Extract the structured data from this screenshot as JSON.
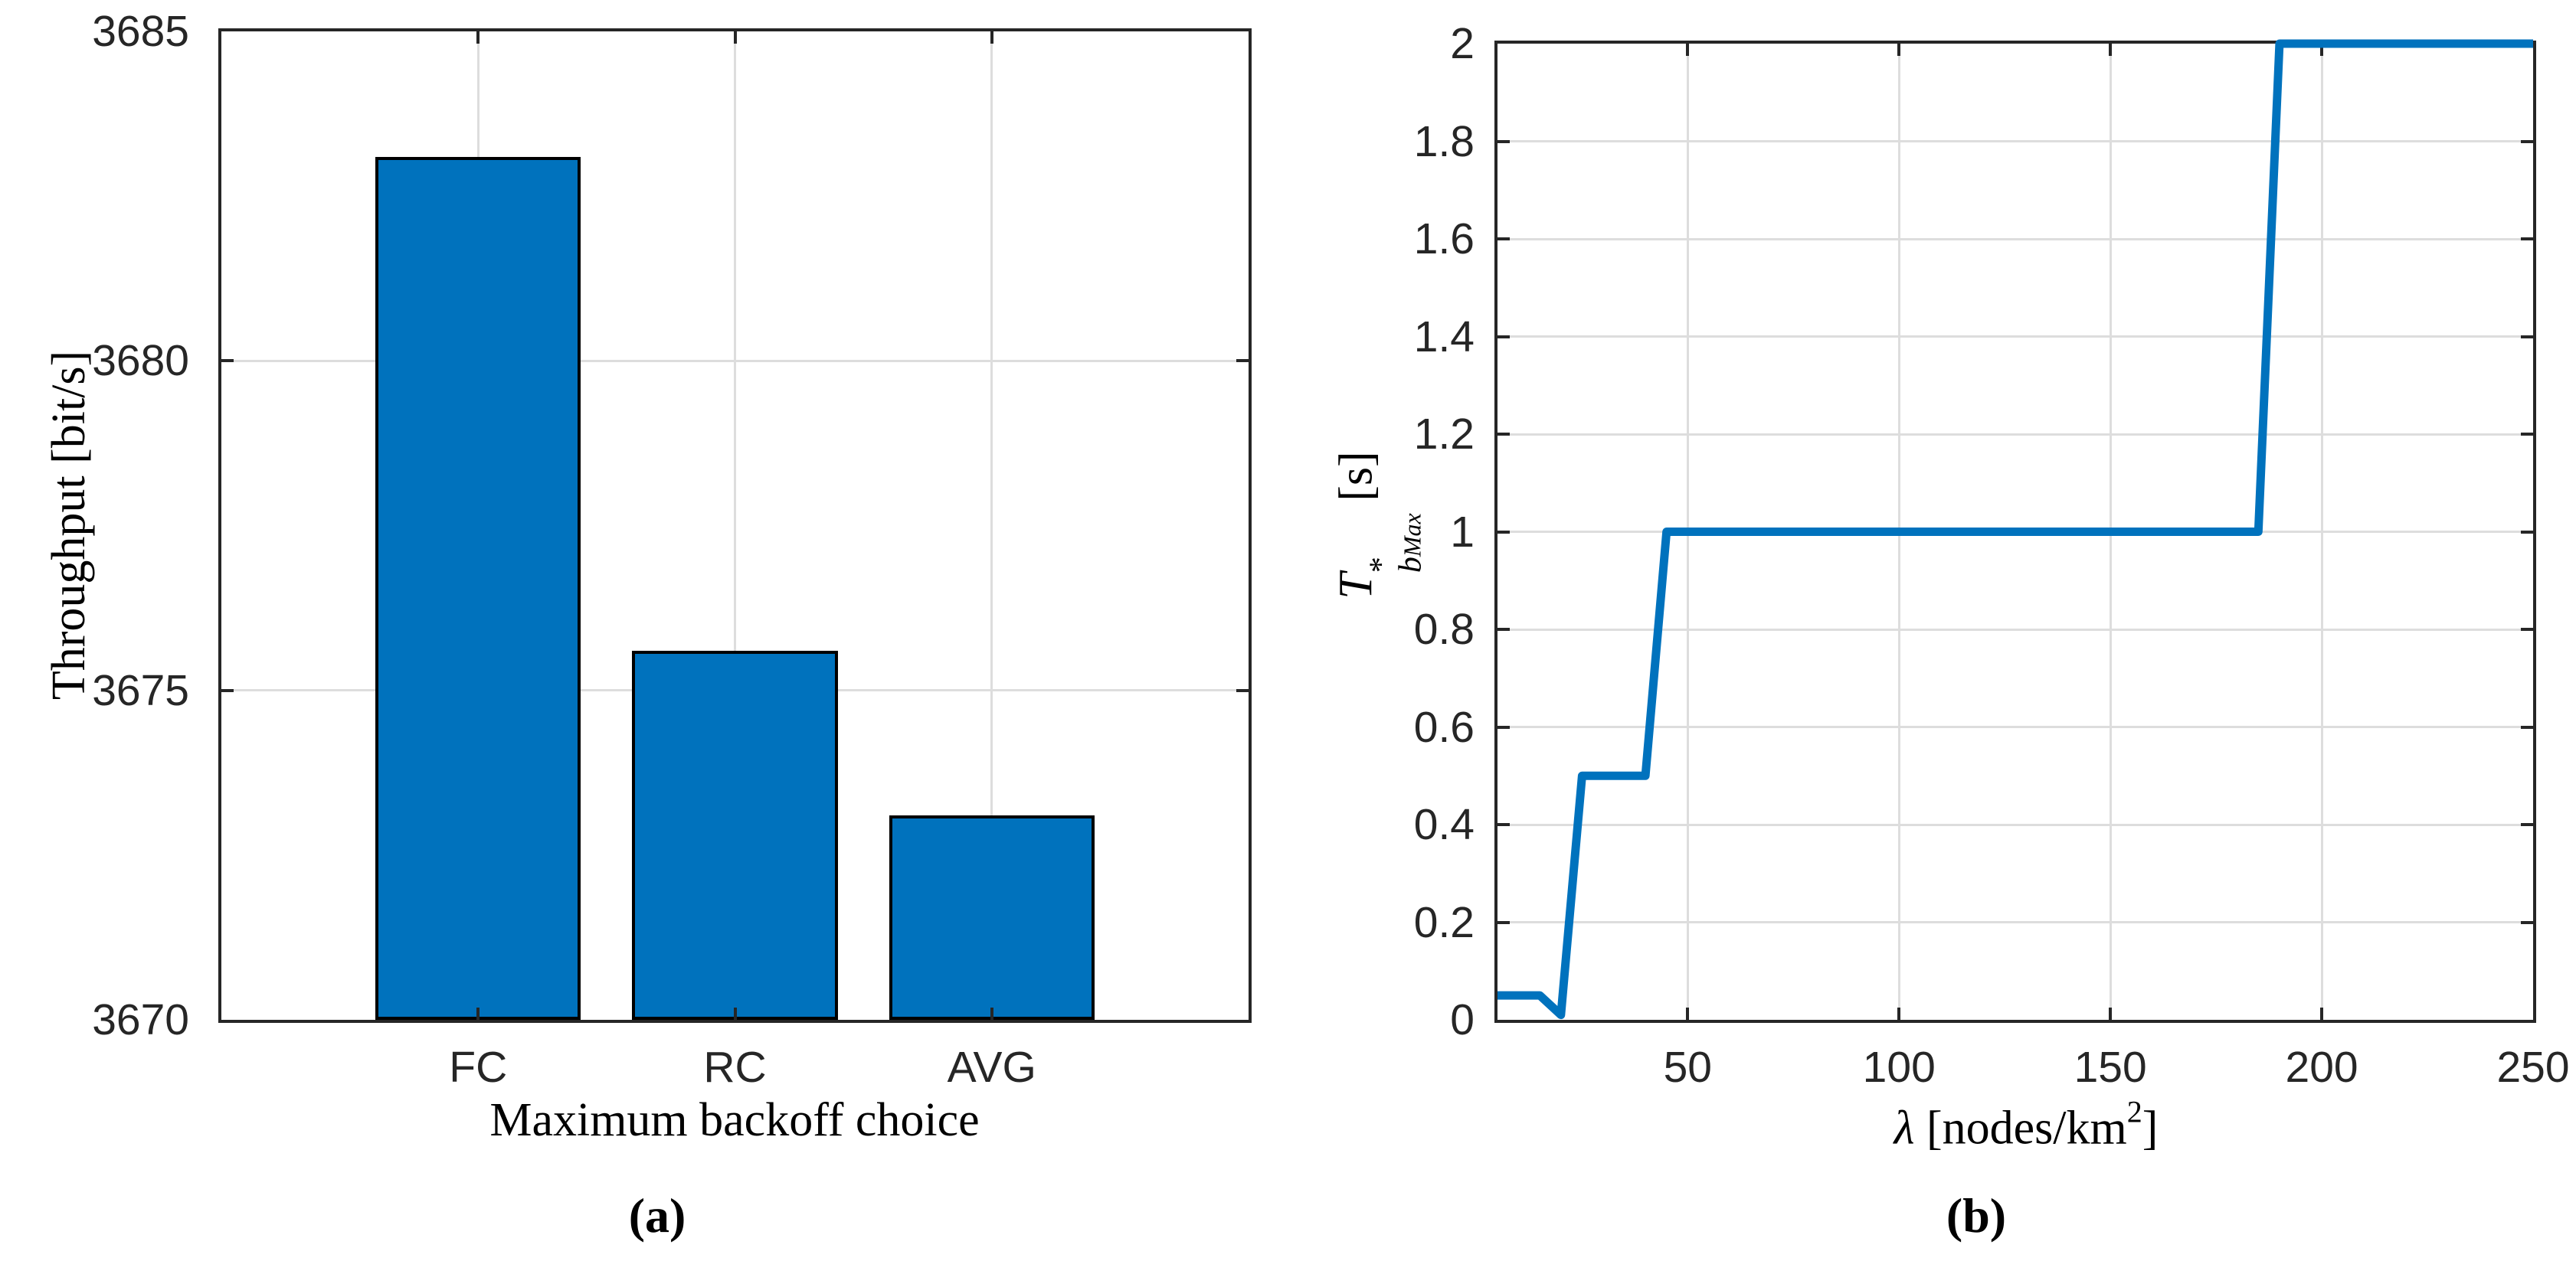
{
  "colors": {
    "accent_blue": "#0072BD",
    "bar_edge": "#000000",
    "axis": "#262626",
    "grid": "#DDDDDD",
    "tick_text": "#262626",
    "label_text": "#000000"
  },
  "panel_a": {
    "caption": "(a)",
    "xlabel": "Maximum backoff choice",
    "ylabel": "Throughput [bit/s]",
    "categories": [
      "FC",
      "RC",
      "AVG"
    ],
    "ytick_labels": [
      "3670",
      "3675",
      "3680",
      "3685"
    ]
  },
  "panel_b": {
    "caption": "(b)",
    "ylabel_parts": {
      "main": "T",
      "sup": "*",
      "sub": "b",
      "subsub": "Max",
      "unit": "[s]"
    },
    "xlabel_parts": {
      "lambda": "λ",
      "mid": " [nodes/km",
      "sup": "2",
      "end": "]"
    },
    "xtick_labels": [
      "50",
      "100",
      "150",
      "200",
      "250"
    ],
    "ytick_labels": [
      "0",
      "0.2",
      "0.4",
      "0.6",
      "0.8",
      "1",
      "1.2",
      "1.4",
      "1.6",
      "1.8",
      "2"
    ]
  },
  "chart_data": [
    {
      "type": "bar",
      "panel": "a",
      "title": "",
      "categories": [
        "FC",
        "RC",
        "AVG"
      ],
      "values": [
        3683.1,
        3675.6,
        3673.1
      ],
      "xlabel": "Maximum backoff choice",
      "ylabel": "Throughput [bit/s]",
      "ylim": [
        3670,
        3685
      ],
      "yticks": [
        3670,
        3675,
        3680,
        3685
      ],
      "ygrid_values": [
        3675,
        3680
      ],
      "grid": true,
      "legend": "none",
      "bar_color": "#0072BD",
      "bar_edge_color": "#000000",
      "bar_width_fraction": 0.2
    },
    {
      "type": "line",
      "panel": "b",
      "title": "",
      "x": [
        5,
        10,
        15,
        20,
        25,
        30,
        35,
        40,
        45,
        185,
        190,
        250
      ],
      "y": [
        0.05,
        0.05,
        0.05,
        0.01,
        0.5,
        0.5,
        0.5,
        0.5,
        1.0,
        1.0,
        2.0,
        2.0
      ],
      "xlabel": "lambda [nodes/km^2]",
      "ylabel": "T*_bMax [s]",
      "xlim": [
        5,
        250
      ],
      "ylim": [
        0,
        2
      ],
      "xticks": [
        50,
        100,
        150,
        200,
        250
      ],
      "yticks": [
        0,
        0.2,
        0.4,
        0.6,
        0.8,
        1,
        1.2,
        1.4,
        1.6,
        1.8,
        2
      ],
      "xgrid_values": [
        50,
        100,
        150,
        200
      ],
      "ygrid_values": [
        0.2,
        0.4,
        0.6,
        0.8,
        1,
        1.2,
        1.4,
        1.6,
        1.8
      ],
      "grid": true,
      "legend": "none",
      "line_color": "#0072BD",
      "line_width": 11
    }
  ]
}
